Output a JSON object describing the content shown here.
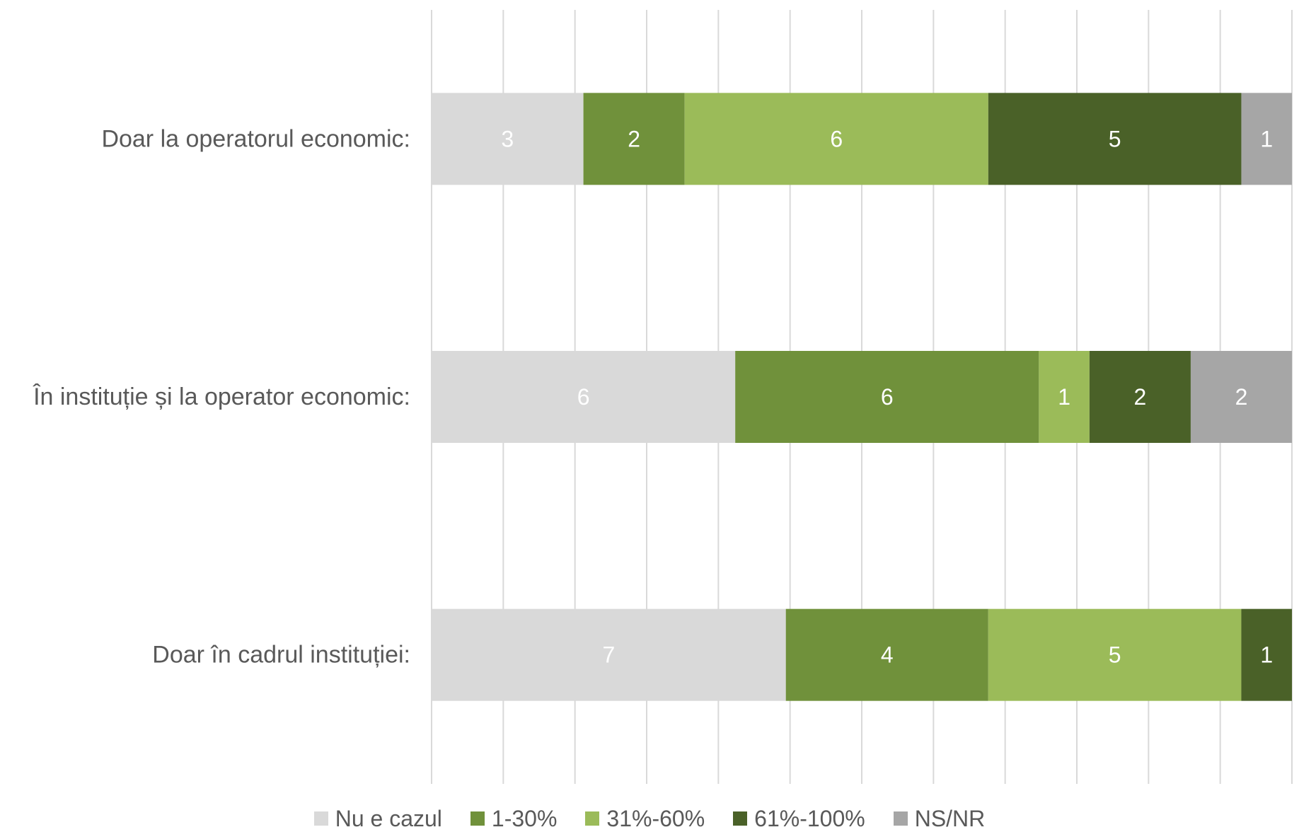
{
  "chart_data": {
    "type": "bar",
    "orientation": "horizontal",
    "stacked": true,
    "categories": [
      "Doar la operatorul economic:",
      "În instituție și la operator economic:",
      "Doar în cadrul instituției:"
    ],
    "series": [
      {
        "name": "Nu e cazul",
        "color": "#d9d9d9",
        "values": [
          3,
          6,
          7
        ]
      },
      {
        "name": "1-30%",
        "color": "#70913b",
        "values": [
          2,
          6,
          4
        ]
      },
      {
        "name": "31%-60%",
        "color": "#9bbb59",
        "values": [
          6,
          1,
          5
        ]
      },
      {
        "name": "61%-100%",
        "color": "#4a6128",
        "values": [
          5,
          2,
          1
        ]
      },
      {
        "name": "NS/NR",
        "color": "#a6a6a6",
        "values": [
          1,
          2,
          0
        ]
      }
    ],
    "xlim": [
      0,
      17
    ],
    "grid": true,
    "legend_position": "bottom"
  }
}
